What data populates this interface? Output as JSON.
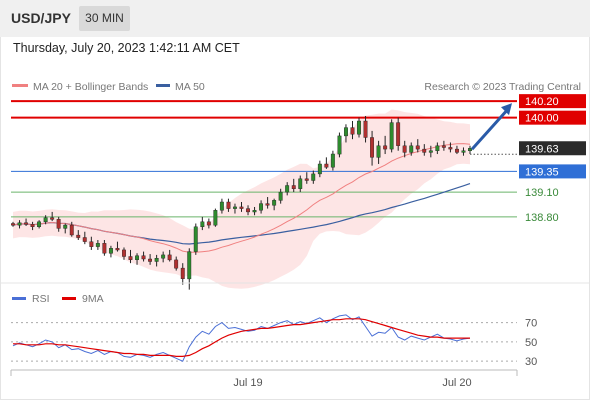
{
  "header": {
    "pair": "USD/JPY",
    "timeframe": "30 MIN",
    "datetime": "Thursday, July 20, 2023 1:42:11 AM CET"
  },
  "legend": {
    "ma20": "MA 20 + Bollinger Bands",
    "ma50": "MA 50",
    "copyright": "Research © 2023 Trading Central",
    "rsi": "RSI",
    "ma9": "9MA"
  },
  "colors": {
    "bull": "#2e8b2e",
    "bear": "#b03030",
    "ma20": "#f08080",
    "ma50": "#3a5fa0",
    "band": "#fde0e0",
    "resistance": "#e00000",
    "pivot": "#2f6fd6",
    "support": "#6ab46a",
    "rsi": "#4a6fd6",
    "rsi_ma": "#e00000",
    "arrow": "#2a5ba8"
  },
  "chart_data": [
    {
      "type": "candlestick",
      "x_ticks": [
        "Jul 19",
        "Jul 20"
      ],
      "levels": [
        {
          "value": 140.2,
          "label": "140.20",
          "kind": "resistance"
        },
        {
          "value": 140.0,
          "label": "140.00",
          "kind": "resistance"
        },
        {
          "value": 139.63,
          "label": "139.63",
          "kind": "last"
        },
        {
          "value": 139.35,
          "label": "139.35",
          "kind": "pivot"
        },
        {
          "value": 139.1,
          "label": "139.10",
          "kind": "support"
        },
        {
          "value": 138.8,
          "label": "138.80",
          "kind": "support"
        }
      ],
      "ylim": [
        138.0,
        140.25
      ],
      "arrow": {
        "from": 139.63,
        "to": 140.2,
        "direction": "up"
      },
      "candles": [
        [
          138.72,
          138.74,
          138.68,
          138.7
        ],
        [
          138.7,
          138.76,
          138.66,
          138.73
        ],
        [
          138.73,
          138.78,
          138.69,
          138.71
        ],
        [
          138.71,
          138.74,
          138.64,
          138.68
        ],
        [
          138.68,
          138.76,
          138.66,
          138.74
        ],
        [
          138.74,
          138.82,
          138.71,
          138.79
        ],
        [
          138.79,
          138.86,
          138.75,
          138.77
        ],
        [
          138.77,
          138.8,
          138.62,
          138.66
        ],
        [
          138.66,
          138.72,
          138.6,
          138.7
        ],
        [
          138.7,
          138.74,
          138.56,
          138.58
        ],
        [
          138.58,
          138.64,
          138.52,
          138.55
        ],
        [
          138.55,
          138.62,
          138.47,
          138.5
        ],
        [
          138.5,
          138.56,
          138.4,
          138.44
        ],
        [
          138.44,
          138.52,
          138.4,
          138.48
        ],
        [
          138.48,
          138.52,
          138.33,
          138.36
        ],
        [
          138.36,
          138.45,
          138.31,
          138.42
        ],
        [
          138.42,
          138.5,
          138.38,
          138.4
        ],
        [
          138.4,
          138.43,
          138.28,
          138.32
        ],
        [
          138.32,
          138.4,
          138.24,
          138.28
        ],
        [
          138.28,
          138.36,
          138.22,
          138.33
        ],
        [
          138.33,
          138.38,
          138.26,
          138.29
        ],
        [
          138.29,
          138.35,
          138.22,
          138.26
        ],
        [
          138.26,
          138.34,
          138.2,
          138.3
        ],
        [
          138.3,
          138.38,
          138.25,
          138.34
        ],
        [
          138.34,
          138.4,
          138.26,
          138.28
        ],
        [
          138.28,
          138.32,
          138.15,
          138.18
        ],
        [
          138.18,
          138.24,
          137.98,
          138.05
        ],
        [
          138.05,
          138.42,
          137.92,
          138.38
        ],
        [
          138.38,
          138.72,
          138.34,
          138.68
        ],
        [
          138.68,
          138.8,
          138.64,
          138.74
        ],
        [
          138.74,
          138.78,
          138.66,
          138.7
        ],
        [
          138.7,
          138.9,
          138.68,
          138.88
        ],
        [
          138.88,
          139.02,
          138.84,
          138.98
        ],
        [
          138.98,
          139.02,
          138.86,
          138.9
        ],
        [
          138.9,
          138.96,
          138.84,
          138.92
        ],
        [
          138.92,
          138.98,
          138.86,
          138.9
        ],
        [
          138.9,
          138.94,
          138.82,
          138.86
        ],
        [
          138.86,
          138.92,
          138.82,
          138.88
        ],
        [
          138.88,
          139.0,
          138.84,
          138.96
        ],
        [
          138.96,
          139.04,
          138.9,
          138.94
        ],
        [
          138.94,
          139.02,
          138.88,
          139.0
        ],
        [
          139.0,
          139.14,
          138.96,
          139.1
        ],
        [
          139.1,
          139.22,
          139.06,
          139.18
        ],
        [
          139.18,
          139.26,
          139.1,
          139.14
        ],
        [
          139.14,
          139.3,
          139.1,
          139.26
        ],
        [
          139.26,
          139.34,
          139.2,
          139.24
        ],
        [
          139.24,
          139.36,
          139.2,
          139.32
        ],
        [
          139.32,
          139.48,
          139.28,
          139.44
        ],
        [
          139.44,
          139.52,
          139.38,
          139.4
        ],
        [
          139.4,
          139.6,
          139.36,
          139.56
        ],
        [
          139.56,
          139.82,
          139.52,
          139.78
        ],
        [
          139.78,
          139.92,
          139.7,
          139.88
        ],
        [
          139.88,
          139.96,
          139.74,
          139.8
        ],
        [
          139.8,
          140.0,
          139.76,
          139.96
        ],
        [
          139.96,
          140.02,
          139.7,
          139.76
        ],
        [
          139.76,
          139.84,
          139.42,
          139.52
        ],
        [
          139.52,
          139.72,
          139.44,
          139.66
        ],
        [
          139.66,
          139.78,
          139.56,
          139.62
        ],
        [
          139.62,
          139.98,
          139.58,
          139.94
        ],
        [
          139.94,
          140.0,
          139.6,
          139.66
        ],
        [
          139.66,
          139.72,
          139.52,
          139.58
        ],
        [
          139.58,
          139.7,
          139.54,
          139.66
        ],
        [
          139.66,
          139.74,
          139.58,
          139.62
        ],
        [
          139.62,
          139.68,
          139.54,
          139.58
        ],
        [
          139.58,
          139.66,
          139.52,
          139.6
        ],
        [
          139.6,
          139.7,
          139.56,
          139.66
        ],
        [
          139.66,
          139.72,
          139.6,
          139.64
        ],
        [
          139.64,
          139.7,
          139.58,
          139.62
        ],
        [
          139.62,
          139.66,
          139.56,
          139.58
        ],
        [
          139.58,
          139.64,
          139.54,
          139.6
        ],
        [
          139.6,
          139.66,
          139.56,
          139.63
        ]
      ]
    },
    {
      "type": "line",
      "title": "RSI",
      "y_ticks": [
        70,
        50,
        30
      ],
      "ylim": [
        25,
        80
      ],
      "series": [
        {
          "name": "RSI",
          "values": [
            46,
            49,
            47,
            45,
            48,
            52,
            50,
            44,
            47,
            42,
            43,
            40,
            38,
            41,
            37,
            40,
            39,
            35,
            34,
            37,
            36,
            34,
            37,
            39,
            36,
            33,
            30,
            45,
            55,
            61,
            58,
            66,
            70,
            64,
            65,
            63,
            61,
            62,
            66,
            64,
            67,
            70,
            72,
            68,
            71,
            69,
            72,
            75,
            70,
            74,
            77,
            78,
            73,
            76,
            66,
            56,
            60,
            59,
            65,
            55,
            52,
            56,
            54,
            52,
            55,
            58,
            54,
            53,
            51,
            53,
            54
          ]
        },
        {
          "name": "9MA",
          "values": [
            48,
            48,
            47,
            47,
            47,
            48,
            48,
            47,
            47,
            46,
            45,
            44,
            43,
            42,
            41,
            40,
            39,
            38,
            38,
            37,
            37,
            36,
            36,
            36,
            36,
            35,
            35,
            36,
            39,
            43,
            46,
            50,
            54,
            57,
            59,
            61,
            62,
            63,
            64,
            64,
            65,
            66,
            67,
            68,
            68,
            69,
            70,
            71,
            72,
            73,
            73,
            74,
            74,
            74,
            73,
            71,
            69,
            67,
            65,
            63,
            61,
            59,
            57,
            56,
            55,
            55,
            54,
            54,
            54,
            54,
            54
          ]
        }
      ]
    }
  ]
}
